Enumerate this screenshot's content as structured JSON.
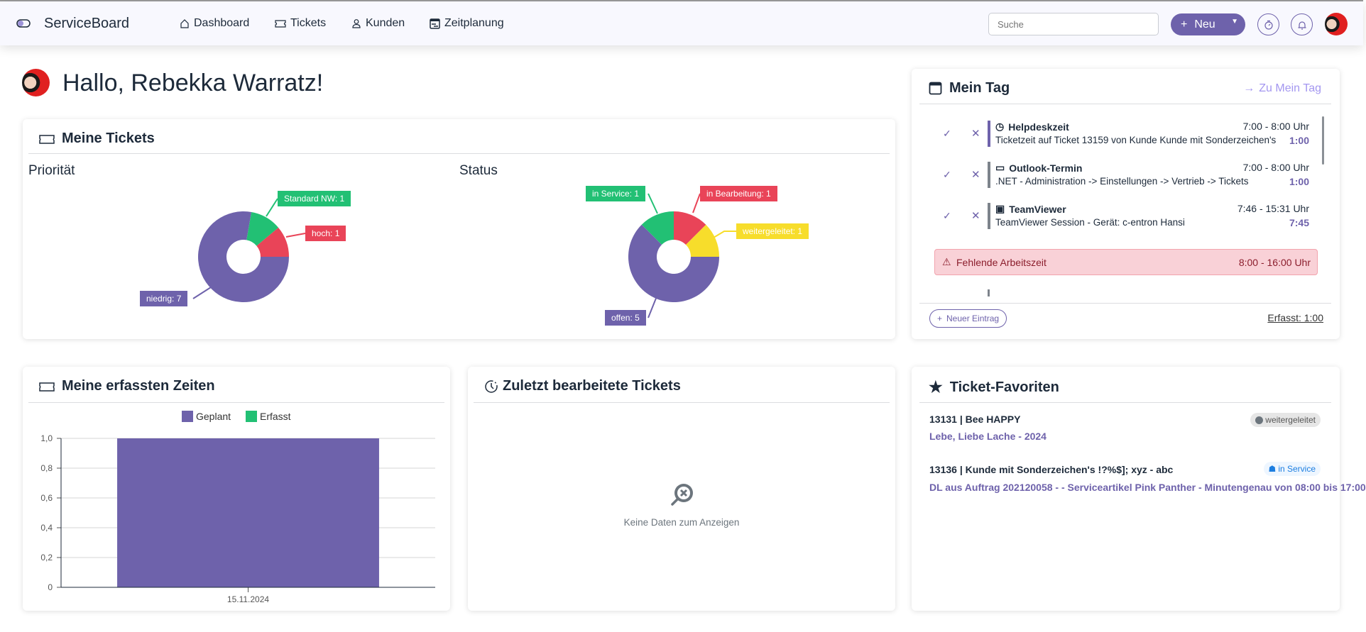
{
  "app": {
    "title": "ServiceBoard"
  },
  "nav": [
    {
      "label": "Dashboard",
      "icon": "home-icon"
    },
    {
      "label": "Tickets",
      "icon": "ticket-icon"
    },
    {
      "label": "Kunden",
      "icon": "user-icon"
    },
    {
      "label": "Zeitplanung",
      "icon": "calendar-icon"
    }
  ],
  "header": {
    "search_placeholder": "Suche",
    "new_label": "Neu"
  },
  "greeting": "Hallo, Rebekka Warratz!",
  "colors": {
    "accent": "#6e62ab",
    "green": "#22c074",
    "red": "#e94458",
    "yellow": "#f7dd2b"
  },
  "tickets": {
    "title": "Meine Tickets"
  },
  "chart_data": [
    {
      "type": "pie",
      "title": "Priorität",
      "categories": [
        "hoch",
        "Standard NW",
        "niedrig"
      ],
      "values": [
        1,
        1,
        7
      ],
      "colors": [
        "#e94458",
        "#22c074",
        "#6e62ab"
      ],
      "labels": [
        "hoch: 1",
        "Standard NW: 1",
        "niedrig: 7"
      ]
    },
    {
      "type": "pie",
      "title": "Status",
      "categories": [
        "weitergeleitet",
        "in Bearbeitung",
        "in Service",
        "offen"
      ],
      "values": [
        1,
        1,
        1,
        5
      ],
      "colors": [
        "#f7dd2b",
        "#e94458",
        "#22c074",
        "#6e62ab"
      ],
      "labels": [
        "weitergeleitet: 1",
        "in Bearbeitung: 1",
        "in Service: 1",
        "offen: 5"
      ]
    },
    {
      "type": "bar",
      "title": "Meine erfassten Zeiten",
      "categories": [
        "15.11.2024"
      ],
      "series": [
        {
          "name": "Geplant",
          "values": [
            1.0
          ],
          "color": "#6e62ab"
        },
        {
          "name": "Erfasst",
          "values": [
            0
          ],
          "color": "#22c074"
        }
      ],
      "ylim": [
        0,
        1.0
      ],
      "yticks": [
        "0",
        "0,2",
        "0,4",
        "0,6",
        "0,8",
        "1,0"
      ],
      "grid": true,
      "legend": "top"
    }
  ],
  "meintag": {
    "title": "Mein Tag",
    "link": "Zu Mein Tag",
    "entries": [
      {
        "title": "Helpdeskzeit",
        "icon": "clock-icon",
        "desc": "Ticketzeit auf Ticket 13159 von Kunde Kunde mit Sonderzeichen's",
        "time": "7:00 - 8:00 Uhr",
        "duration": "1:00",
        "bar": "#6e62ab"
      },
      {
        "title": "Outlook-Termin",
        "icon": "calendar-icon",
        "desc": ".NET - Administration -> Einstellungen -> Vertrieb -> Tickets",
        "time": "7:00 - 8:00 Uhr",
        "duration": "1:00",
        "bar": "#7d838b"
      },
      {
        "title": "TeamViewer",
        "icon": "monitor-icon",
        "desc": "TeamViewer Session - Gerät: c-entron Hansi",
        "time": "7:46 - 15:31 Uhr",
        "duration": "7:45",
        "bar": "#7d838b"
      }
    ],
    "alert": {
      "label": "Fehlende Arbeitszeit",
      "time": "8:00 - 16:00 Uhr"
    },
    "new_entry": "Neuer Eintrag",
    "captured": "Erfasst: 1:00"
  },
  "recent": {
    "title": "Zuletzt bearbeitete Tickets",
    "empty": "Keine Daten zum Anzeigen"
  },
  "favorites": {
    "title": "Ticket-Favoriten",
    "items": [
      {
        "title": "13131 | Bee HAPPY",
        "subtitle": "Lebe, Liebe Lache - 2024",
        "status": "weitergeleitet"
      },
      {
        "title": "13136 | Kunde mit Sonderzeichen's !?%$]; xyz - abc",
        "subtitle": "DL aus Auftrag 202120058 - - Serviceartikel Pink Panther - Minutengenau von 08:00 bis 17:00",
        "status": "in Service"
      }
    ]
  }
}
